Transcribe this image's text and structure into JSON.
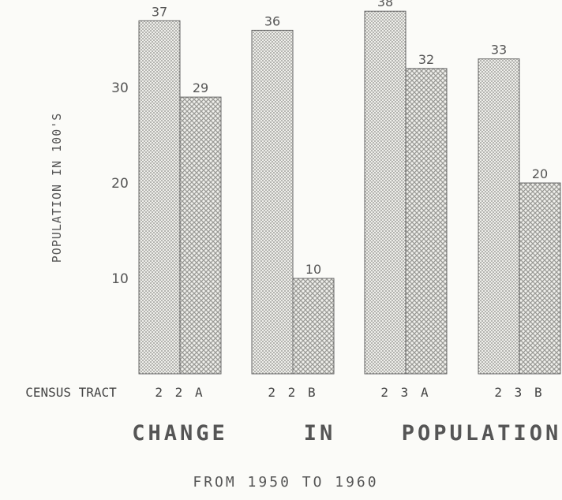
{
  "chart_data": {
    "type": "bar",
    "title_words": [
      "CHANGE",
      "IN",
      "POPULATION"
    ],
    "subtitle": "FROM 1950 TO 1960",
    "ylabel": "POPULATION IN 100'S",
    "xlabel": "CENSUS TRACT",
    "categories": [
      "2 2 A",
      "2 2 B",
      "2 3 A",
      "2 3 B"
    ],
    "series": [
      {
        "values": [
          37,
          36,
          38,
          33
        ]
      },
      {
        "values": [
          29,
          10,
          32,
          20
        ]
      }
    ],
    "data_labels": [
      [
        "37",
        "36",
        "38",
        "33"
      ],
      [
        "29",
        "10",
        "32",
        "20"
      ]
    ],
    "y_ticks": [
      10,
      20,
      30
    ],
    "ylim": [
      0,
      40
    ],
    "grid": false,
    "legend": "none",
    "colors": {
      "series1": "#8a8a86",
      "series2": "#9a9a96",
      "outline": "#666666"
    }
  }
}
